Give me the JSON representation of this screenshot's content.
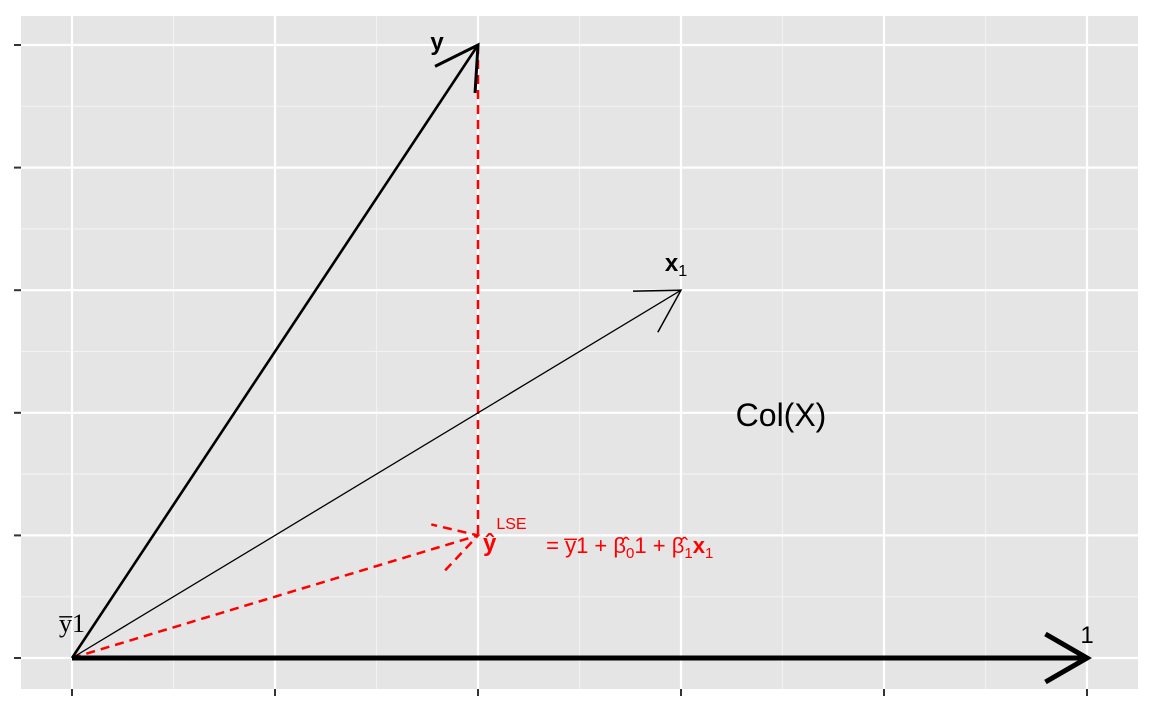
{
  "diagram": {
    "labels": {
      "y_vector": "y",
      "x1_vector": "x",
      "x1_subscript": "1",
      "one_vector": "1",
      "ybar_one": "y̅1",
      "col_x": "Col(X)",
      "yhat": "ŷ",
      "lse_superscript": "LSE",
      "equation_part1": " = y̅1 + β̂",
      "beta0_sub": "0",
      "equation_part2": "1 + β̂",
      "beta1_sub": "1",
      "equation_x": "x",
      "equation_x_sub": "1"
    },
    "colors": {
      "panel_background": "#e5e5e5",
      "grid": "#ffffff",
      "vector": "#000000",
      "projection": "#ff0000"
    },
    "axes": {
      "x_breaks": [
        0,
        1,
        2,
        3,
        4,
        5
      ],
      "y_breaks": [
        0,
        1,
        2,
        3,
        4,
        5
      ],
      "x_tick_labels": "none",
      "y_tick_labels": "none",
      "grid": true
    },
    "vectors": [
      {
        "name": "1",
        "from": [
          0,
          0
        ],
        "to": [
          5,
          0
        ],
        "style": "solid-thick"
      },
      {
        "name": "y",
        "from": [
          0,
          0
        ],
        "to": [
          2,
          5
        ],
        "style": "solid"
      },
      {
        "name": "x1",
        "from": [
          0,
          0
        ],
        "to": [
          3,
          3
        ],
        "style": "solid-thin"
      },
      {
        "name": "yhat_LSE",
        "from": [
          0,
          0
        ],
        "to": [
          2,
          1
        ],
        "style": "dashed-red"
      },
      {
        "name": "residual",
        "from": [
          2,
          5
        ],
        "to": [
          2,
          1
        ],
        "style": "dashed-red"
      }
    ]
  }
}
